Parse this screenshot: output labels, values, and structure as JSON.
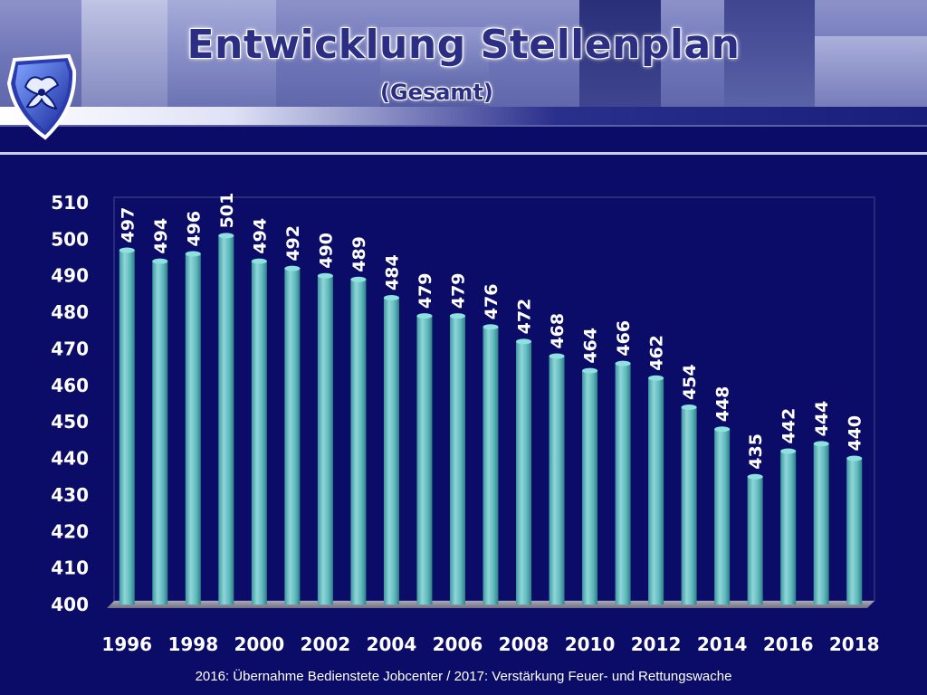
{
  "header": {
    "title": "Entwicklung Stellenplan",
    "subtitle": "(Gesamt)"
  },
  "footnote": "2016: Übernahme Bedienstete Jobcenter / 2017: Verstärkung Feuer- und Rettungswache",
  "colors": {
    "background": "#0b0b68",
    "bar": "#5fb9bd",
    "bar_top": "#8fe0e0",
    "axis_text": "#ffffff",
    "title": "#2b2e83"
  },
  "chart_data": {
    "type": "bar",
    "title": "Entwicklung Stellenplan (Gesamt)",
    "categories": [
      "1996",
      "1997",
      "1998",
      "1999",
      "2000",
      "2001",
      "2002",
      "2003",
      "2004",
      "2005",
      "2006",
      "2007",
      "2008",
      "2009",
      "2010",
      "2011",
      "2012",
      "2013",
      "2014",
      "2015",
      "2016",
      "2017",
      "2018"
    ],
    "values": [
      497,
      494,
      496,
      501,
      494,
      492,
      490,
      489,
      484,
      479,
      479,
      476,
      472,
      468,
      464,
      466,
      462,
      454,
      448,
      435,
      442,
      444,
      440
    ],
    "xtick_labels": [
      "1996",
      "1998",
      "2000",
      "2002",
      "2004",
      "2006",
      "2008",
      "2010",
      "2012",
      "2014",
      "2016",
      "2018"
    ],
    "ytick_labels": [
      "400",
      "410",
      "420",
      "430",
      "440",
      "450",
      "460",
      "470",
      "480",
      "490",
      "500",
      "510"
    ],
    "ylim": [
      400,
      510
    ],
    "xlabel": "",
    "ylabel": "",
    "grid": false,
    "legend": "none",
    "data_labels": true
  }
}
